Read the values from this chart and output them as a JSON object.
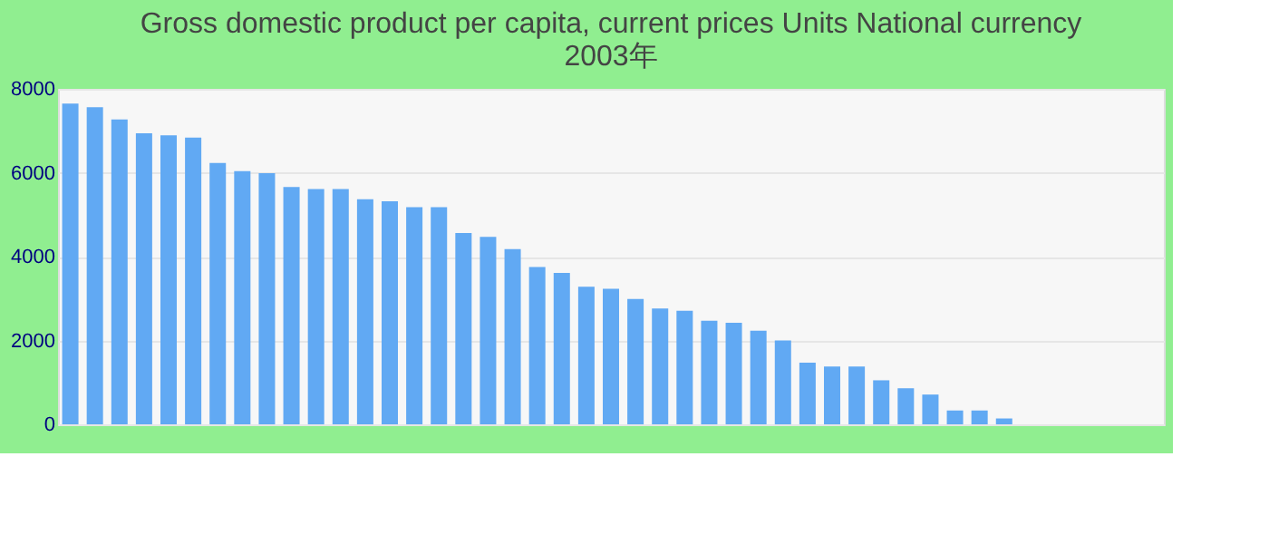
{
  "chart_data": {
    "type": "bar",
    "title": [
      "Gross domestic product per capita, current prices Units National currency",
      "2003年"
    ],
    "categories": [
      null,
      null,
      null,
      null,
      null,
      null,
      null,
      null,
      null,
      null,
      null,
      null,
      null,
      null,
      null,
      null,
      null,
      null,
      null,
      null,
      null,
      null,
      null,
      null,
      null,
      null,
      null,
      null,
      null,
      null,
      null,
      null,
      null,
      null,
      null,
      null,
      null,
      null,
      null,
      null,
      null,
      null,
      null,
      null,
      null
    ],
    "values": [
      7650,
      7560,
      7270,
      6940,
      6890,
      6840,
      6230,
      6040,
      5990,
      5660,
      5610,
      5610,
      5370,
      5320,
      5180,
      5180,
      4560,
      4470,
      4180,
      3750,
      3610,
      3280,
      3230,
      2990,
      2760,
      2710,
      2470,
      2420,
      2230,
      2000,
      1470,
      1380,
      1380,
      1050,
      860,
      710,
      330,
      330,
      140,
      null,
      null,
      null,
      null,
      null,
      null
    ],
    "color": "#61a9f3",
    "ylim": [
      0,
      8000
    ],
    "yticks": [
      0,
      2000,
      4000,
      6000,
      8000
    ],
    "grid": "y"
  }
}
